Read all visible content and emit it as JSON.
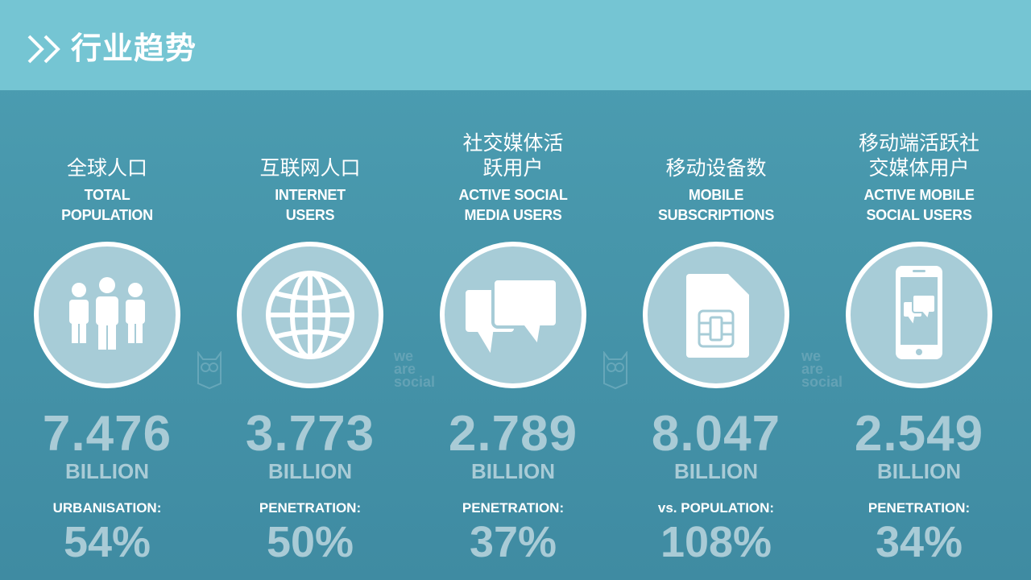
{
  "header": {
    "title": "行业趋势"
  },
  "watermark": {
    "lines": [
      "we",
      "are",
      "social"
    ]
  },
  "columns": [
    {
      "cn": "全球人口",
      "en": "TOTAL\nPOPULATION",
      "icon": "people-icon",
      "number": "7.476",
      "unit": "BILLION",
      "label": "URBANISATION:",
      "percent": "54%"
    },
    {
      "cn": "互联网人口",
      "en": "INTERNET\nUSERS",
      "icon": "globe-icon",
      "number": "3.773",
      "unit": "BILLION",
      "label": "PENETRATION:",
      "percent": "50%"
    },
    {
      "cn": "社交媒体活\n跃用户",
      "en": "ACTIVE SOCIAL\nMEDIA USERS",
      "icon": "chat-bubbles-icon",
      "number": "2.789",
      "unit": "BILLION",
      "label": "PENETRATION:",
      "percent": "37%"
    },
    {
      "cn": "移动设备数",
      "en": "MOBILE\nSUBSCRIPTIONS",
      "icon": "sim-card-icon",
      "number": "8.047",
      "unit": "BILLION",
      "label": "vs. POPULATION:",
      "percent": "108%"
    },
    {
      "cn": "移动端活跃社\n交媒体用户",
      "en": "ACTIVE MOBILE\nSOCIAL USERS",
      "icon": "smartphone-chat-icon",
      "number": "2.549",
      "unit": "BILLION",
      "label": "PENETRATION:",
      "percent": "34%"
    }
  ]
}
